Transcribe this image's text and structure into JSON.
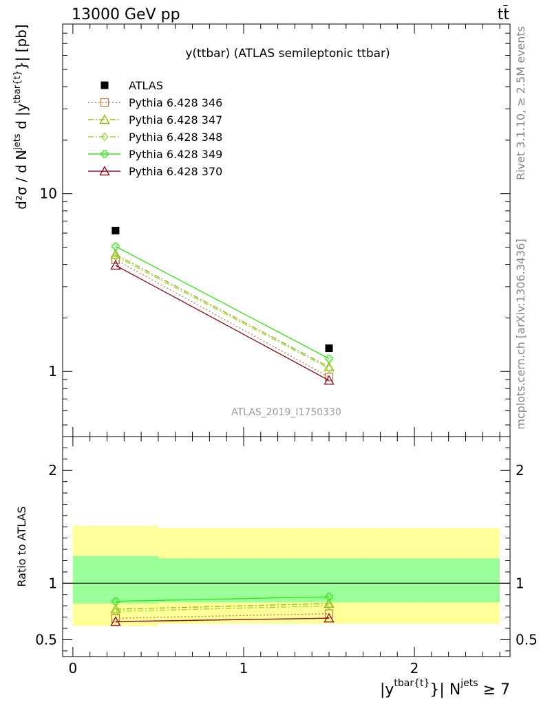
{
  "header": {
    "energy_label": "13000 GeV pp",
    "process_label": "tt̄"
  },
  "side_labels": {
    "rivet": "Rivet 3.1.10, ≥ 2.5M events",
    "mcplots": "mcplots.cern.ch [arXiv:1306.3436]"
  },
  "chart_data": [
    {
      "type": "scatter",
      "title": "y(ttbar) (ATLAS semileptonic ttbar)",
      "watermark": "ATLAS_2019_I1750330",
      "ylabel": {
        "main": "d²σ / d N",
        "jets_sup": "jets",
        "mid": " d |y",
        "tbar_sup": "tbar{t}",
        "tail": "}| [pb]"
      },
      "yscale": "log",
      "ylim": [
        0.43,
        90
      ],
      "xlim": [
        -0.06,
        2.56
      ],
      "y_ticks": [
        1,
        10
      ],
      "y_tick_labels": [
        "1",
        "10"
      ],
      "legend_position": "top-left",
      "series": [
        {
          "name": "ATLAS",
          "color": "#000000",
          "marker": "square",
          "line": "none",
          "x": [
            0.25,
            1.5
          ],
          "y": [
            6.2,
            1.35
          ]
        },
        {
          "name": "Pythia 6.428 346",
          "color": "#b5844d",
          "marker": "open-square",
          "line": "dotted",
          "x": [
            0.25,
            1.5
          ],
          "y": [
            4.25,
            0.93
          ]
        },
        {
          "name": "Pythia 6.428 347",
          "color": "#98b818",
          "marker": "open-triangle",
          "line": "dashdot",
          "x": [
            0.25,
            1.5
          ],
          "y": [
            4.55,
            1.06
          ]
        },
        {
          "name": "Pythia 6.428 348",
          "color": "#9ad63a",
          "marker": "open-diamond",
          "line": "dashdot",
          "x": [
            0.25,
            1.5
          ],
          "y": [
            4.45,
            1.04
          ]
        },
        {
          "name": "Pythia 6.428 349",
          "color": "#3ce41c",
          "marker": "open-cross",
          "line": "solid",
          "x": [
            0.25,
            1.5
          ],
          "y": [
            5.05,
            1.18
          ]
        },
        {
          "name": "Pythia 6.428 370",
          "color": "#8c1426",
          "marker": "open-triangle",
          "line": "solid",
          "x": [
            0.25,
            1.5
          ],
          "y": [
            3.95,
            0.89
          ]
        }
      ]
    },
    {
      "type": "line",
      "ylabel": "Ratio to ATLAS",
      "xlabel": {
        "main": "|y",
        "tbar_sup": "tbar{t}",
        "mid": "}| N",
        "jets_sup": "jets",
        "tail": " ≥ 7"
      },
      "xlim": [
        -0.06,
        2.56
      ],
      "ylim": [
        0.35,
        2.3
      ],
      "y_ticks": [
        0.5,
        1,
        2
      ],
      "y_tick_labels": [
        "0.5",
        "1",
        "2"
      ],
      "x_ticks": [
        0,
        1,
        2
      ],
      "x_tick_labels": [
        "0",
        "1",
        "2"
      ],
      "reference_line": 1,
      "bands": [
        {
          "x0": 0.0,
          "x1": 0.5,
          "yellow": [
            0.62,
            1.51
          ],
          "green": [
            0.82,
            1.24
          ]
        },
        {
          "x0": 0.5,
          "x1": 2.5,
          "yellow": [
            0.64,
            1.49
          ],
          "green": [
            0.83,
            1.22
          ]
        }
      ],
      "series": [
        {
          "name": "Pythia 6.428 346",
          "color": "#b5844d",
          "marker": "open-square",
          "line": "dotted",
          "x": [
            0.25,
            1.5
          ],
          "y": [
            0.69,
            0.73
          ]
        },
        {
          "name": "Pythia 6.428 347",
          "color": "#98b818",
          "marker": "open-triangle",
          "line": "dashdot",
          "x": [
            0.25,
            1.5
          ],
          "y": [
            0.77,
            0.82
          ]
        },
        {
          "name": "Pythia 6.428 348",
          "color": "#9ad63a",
          "marker": "open-diamond",
          "line": "dashdot",
          "x": [
            0.25,
            1.5
          ],
          "y": [
            0.75,
            0.8
          ]
        },
        {
          "name": "Pythia 6.428 349",
          "color": "#3ce41c",
          "marker": "open-cross",
          "line": "solid",
          "x": [
            0.25,
            1.5
          ],
          "y": [
            0.84,
            0.88
          ]
        },
        {
          "name": "Pythia 6.428 370",
          "color": "#8c1426",
          "marker": "open-triangle",
          "line": "solid",
          "x": [
            0.25,
            1.5
          ],
          "y": [
            0.66,
            0.69
          ]
        }
      ]
    }
  ]
}
